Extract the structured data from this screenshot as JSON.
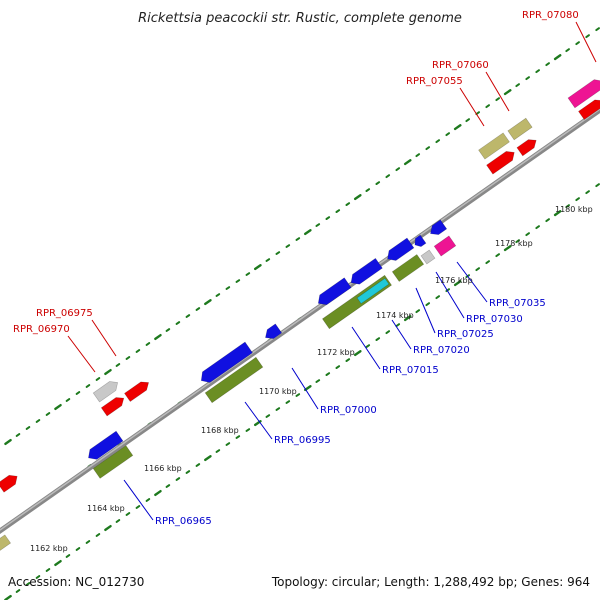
{
  "title": "Rickettsia peacockii str. Rustic, complete genome",
  "footer": {
    "accession": "Accession: NC_012730",
    "summary": "Topology: circular; Length: 1,288,492 bp; Genes: 964"
  },
  "colors": {
    "backbone": "#8c8c8c",
    "tick": "#1e7a1e",
    "forward_label": "#cc0000",
    "reverse_label": "#0000cc",
    "gene_red": "#ee0000",
    "gene_blue": "#1010e0",
    "gene_olive": "#6b8e23",
    "gene_tan": "#bdb76b",
    "gene_gray": "#c8c8c8",
    "gene_pink": "#ee1493",
    "gene_cyan": "#20c8d8"
  },
  "scale": {
    "unit": "kbp",
    "labels": [
      "1162 kbp",
      "1164 kbp",
      "1166 kbp",
      "1168 kbp",
      "1170 kbp",
      "1172 kbp",
      "1174 kbp",
      "1176 kbp",
      "1178 kbp",
      "1180 kbp"
    ]
  },
  "forward_labels": [
    "RPR_06970",
    "RPR_06975",
    "RPR_07055",
    "RPR_07060",
    "RPR_07080"
  ],
  "reverse_labels": [
    "RPR_06965",
    "RPR_06995",
    "RPR_07000",
    "RPR_07015",
    "RPR_07020",
    "RPR_07025",
    "RPR_07030",
    "RPR_07035"
  ]
}
